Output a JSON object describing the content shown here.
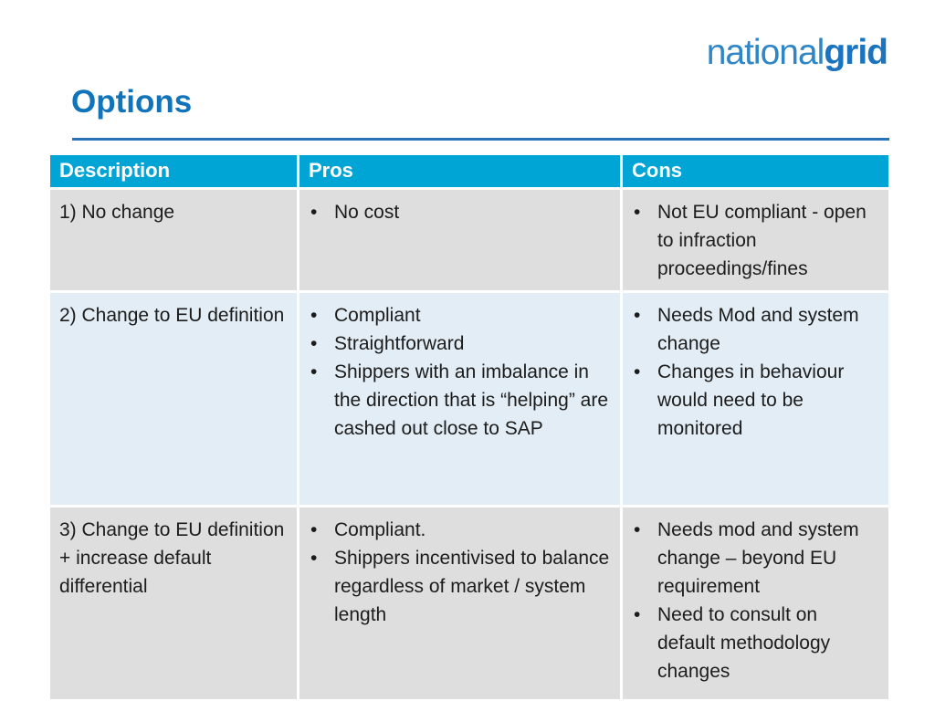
{
  "logo": {
    "part1": "national",
    "part2": "grid"
  },
  "title": "Options",
  "colors": {
    "header_bg": "#00a5d5",
    "row_gray": "#dedede",
    "row_blue": "#e2edf5",
    "title_blue": "#1173b9",
    "underline_blue": "#2a72b8",
    "logo_national_blue": "#2e86c6",
    "logo_grid_blue": "#1b74bd",
    "body_text": "#1c1c1c"
  },
  "table": {
    "bullet_char": "•",
    "columns": [
      "Description",
      "Pros",
      "Cons"
    ],
    "rows": [
      {
        "description": "1) No change",
        "pros": [
          "No cost"
        ],
        "cons": [
          "Not EU compliant - open to infraction proceedings/fines"
        ]
      },
      {
        "description": "2) Change to EU definition",
        "pros": [
          "Compliant",
          "Straightforward",
          "Shippers with an imbalance in the direction that is “helping” are cashed out close to SAP"
        ],
        "cons": [
          "Needs Mod and system change",
          "Changes in behaviour would need to be monitored"
        ]
      },
      {
        "description": "3) Change to EU definition + increase default differential",
        "pros": [
          "Compliant.",
          "Shippers incentivised to balance regardless of market / system length"
        ],
        "cons": [
          "Needs mod and system change – beyond EU requirement",
          "Need to consult on default methodology changes"
        ]
      }
    ]
  }
}
